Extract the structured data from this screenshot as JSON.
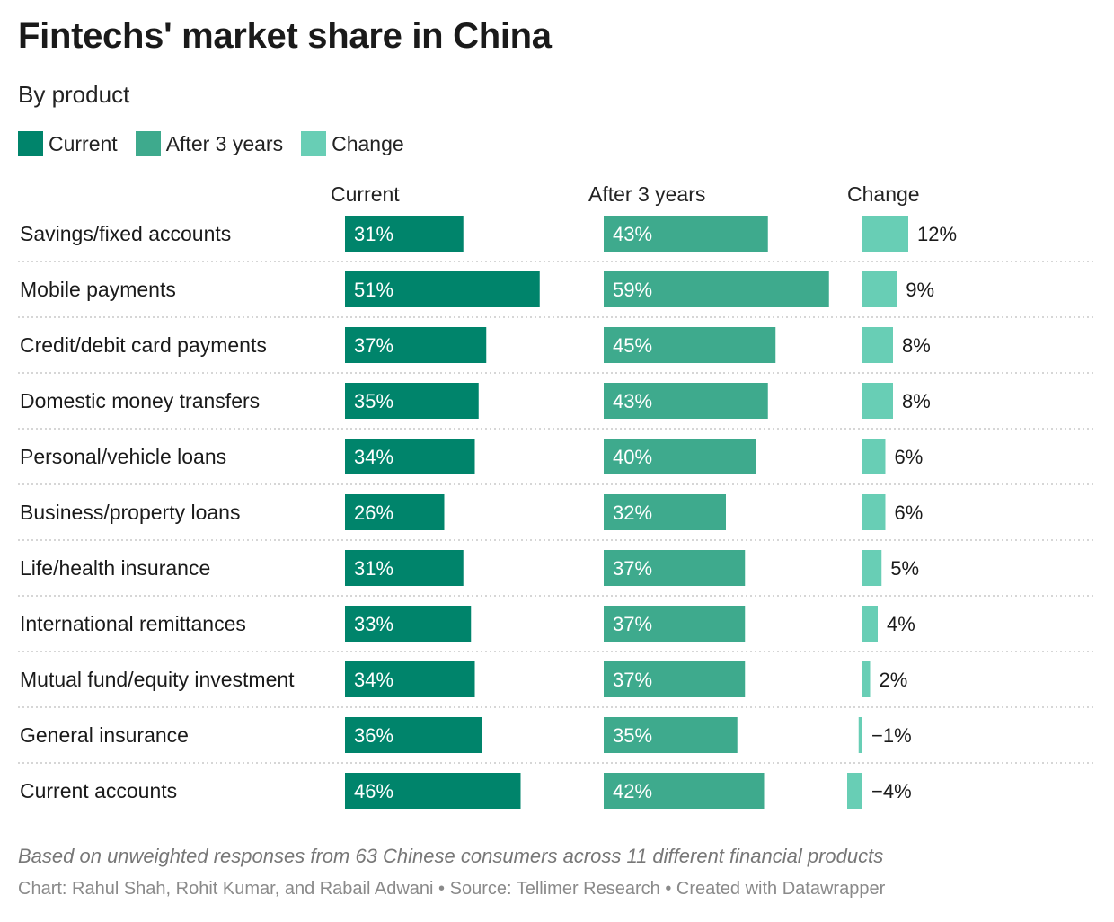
{
  "title": "Fintechs' market share in China",
  "subtitle": "By product",
  "legend": [
    {
      "label": "Current",
      "color": "#00846b"
    },
    {
      "label": "After 3 years",
      "color": "#3eaa8d"
    },
    {
      "label": "Change",
      "color": "#68ceb5"
    }
  ],
  "footnote": "Based on unweighted responses from 63 Chinese consumers across 11 different financial products",
  "credits": "Chart: Rahul Shah, Rohit Kumar, and Rabail Adwani • Source: Tellimer Research • Created with Datawrapper",
  "chart_data": {
    "type": "bar",
    "categories": [
      "Savings/fixed accounts",
      "Mobile payments",
      "Credit/debit card payments",
      "Domestic money transfers",
      "Personal/vehicle loans",
      "Business/property loans",
      "Life/health insurance",
      "International remittances",
      "Mutual fund/equity investment",
      "General insurance",
      "Current accounts"
    ],
    "series": [
      {
        "name": "Current",
        "color": "#00846b",
        "values": [
          31,
          51,
          37,
          35,
          34,
          26,
          31,
          33,
          34,
          36,
          46
        ],
        "labels": [
          "31%",
          "51%",
          "37%",
          "35%",
          "34%",
          "26%",
          "31%",
          "33%",
          "34%",
          "36%",
          "46%"
        ]
      },
      {
        "name": "After 3 years",
        "color": "#3eaa8d",
        "values": [
          43,
          59,
          45,
          43,
          40,
          32,
          37,
          37,
          37,
          35,
          42
        ],
        "labels": [
          "43%",
          "59%",
          "45%",
          "43%",
          "40%",
          "32%",
          "37%",
          "37%",
          "37%",
          "35%",
          "42%"
        ]
      },
      {
        "name": "Change",
        "color": "#68ceb5",
        "values": [
          12,
          9,
          8,
          8,
          6,
          6,
          5,
          4,
          2,
          -1,
          -4
        ],
        "labels": [
          "12%",
          "9%",
          "8%",
          "8%",
          "6%",
          "6%",
          "5%",
          "4%",
          "2%",
          "−1%",
          "−4%"
        ]
      }
    ],
    "column_headers": [
      "Current",
      "After 3 years",
      "Change"
    ],
    "value_unit": "%"
  }
}
